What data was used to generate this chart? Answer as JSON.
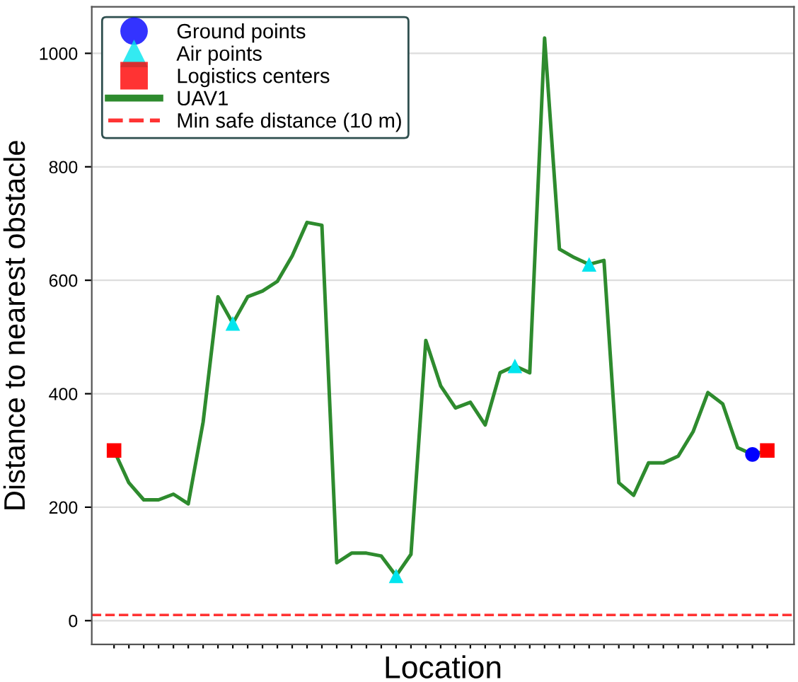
{
  "chart_data": {
    "type": "line",
    "xlabel": "Location",
    "ylabel": "Distance to nearest obstacle",
    "categories": [
      null,
      null,
      null,
      null,
      null,
      null,
      null,
      null,
      null,
      null,
      null,
      null,
      null,
      null,
      null,
      null,
      null,
      null,
      null,
      null,
      null,
      null,
      null,
      null,
      null,
      null,
      null,
      null,
      null,
      null,
      null,
      null,
      null,
      null,
      null,
      null,
      null,
      null,
      null,
      null,
      null,
      null,
      null,
      null,
      null
    ],
    "ylim": [
      -42,
      1082
    ],
    "yticks": [
      0,
      200,
      400,
      600,
      800,
      1000
    ],
    "grid": "y",
    "legend": "top left",
    "series": [
      {
        "name": "Ground points",
        "type": "scatter",
        "marker": "circle",
        "color": "#0000ff",
        "values": [
          null,
          null,
          null,
          null,
          null,
          null,
          null,
          null,
          null,
          null,
          null,
          null,
          null,
          null,
          null,
          null,
          null,
          null,
          null,
          null,
          null,
          null,
          null,
          null,
          null,
          null,
          null,
          null,
          null,
          null,
          null,
          null,
          null,
          null,
          null,
          null,
          null,
          null,
          null,
          null,
          null,
          null,
          null,
          293,
          null
        ]
      },
      {
        "name": "Air points",
        "type": "scatter",
        "marker": "triangle",
        "color": "#00e5ee",
        "values": [
          null,
          null,
          null,
          null,
          null,
          null,
          null,
          null,
          524,
          null,
          null,
          null,
          null,
          null,
          null,
          null,
          null,
          null,
          null,
          79,
          null,
          null,
          null,
          null,
          null,
          null,
          null,
          449,
          null,
          null,
          null,
          null,
          628,
          null,
          null,
          null,
          null,
          null,
          null,
          null,
          null,
          null,
          null,
          null,
          null
        ]
      },
      {
        "name": "Logistics centers",
        "type": "scatter",
        "marker": "square",
        "color": "#ff0000",
        "values": [
          300,
          null,
          null,
          null,
          null,
          null,
          null,
          null,
          null,
          null,
          null,
          null,
          null,
          null,
          null,
          null,
          null,
          null,
          null,
          null,
          null,
          null,
          null,
          null,
          null,
          null,
          null,
          null,
          null,
          null,
          null,
          null,
          null,
          null,
          null,
          null,
          null,
          null,
          null,
          null,
          null,
          null,
          null,
          null,
          300
        ]
      },
      {
        "name": "UAV1",
        "marker": "none",
        "line_style": "solid",
        "color": "#2e8b2e",
        "values": [
          300,
          243,
          213,
          213,
          223,
          206,
          350,
          571,
          524,
          571,
          581,
          598,
          643,
          702,
          697,
          102,
          119,
          119,
          114,
          79,
          117,
          494,
          414,
          375,
          385,
          345,
          437,
          449,
          437,
          1027,
          655,
          640,
          628,
          635,
          243,
          221,
          278,
          278,
          290,
          333,
          402,
          382,
          305,
          293,
          300
        ]
      }
    ],
    "ref_lines": [
      {
        "axis": "y",
        "value": 10,
        "label": "Min safe distance (10 m)",
        "color": "#ff0000",
        "line_style": "dashed"
      }
    ]
  }
}
